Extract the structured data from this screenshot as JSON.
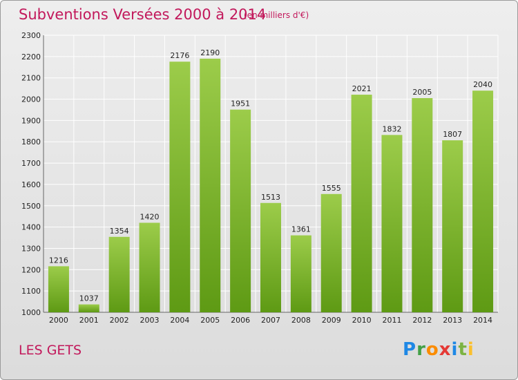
{
  "header": {
    "title": "Subventions Versées 2000 à 2014",
    "unit": "(en milliers d'€)"
  },
  "footer": {
    "commune": "LES GETS",
    "logo_text": "Proxiti"
  },
  "colors": {
    "bar_light": "#9ccc4a",
    "bar_dark": "#5e9a14",
    "title": "#c2185b"
  },
  "chart_data": {
    "type": "bar",
    "title": "Subventions Versées 2000 à 2014",
    "xlabel": "",
    "ylabel": "",
    "categories": [
      "2000",
      "2001",
      "2002",
      "2003",
      "2004",
      "2005",
      "2006",
      "2007",
      "2008",
      "2009",
      "2010",
      "2011",
      "2012",
      "2013",
      "2014"
    ],
    "values": [
      1216,
      1037,
      1354,
      1420,
      2176,
      2190,
      1951,
      1513,
      1361,
      1555,
      2021,
      1832,
      2005,
      1807,
      2040
    ],
    "ylim": [
      1000,
      2300
    ],
    "yticks": [
      1000,
      1100,
      1200,
      1300,
      1400,
      1500,
      1600,
      1700,
      1800,
      1900,
      2000,
      2100,
      2200,
      2300
    ],
    "grid": true,
    "legend": "none"
  }
}
